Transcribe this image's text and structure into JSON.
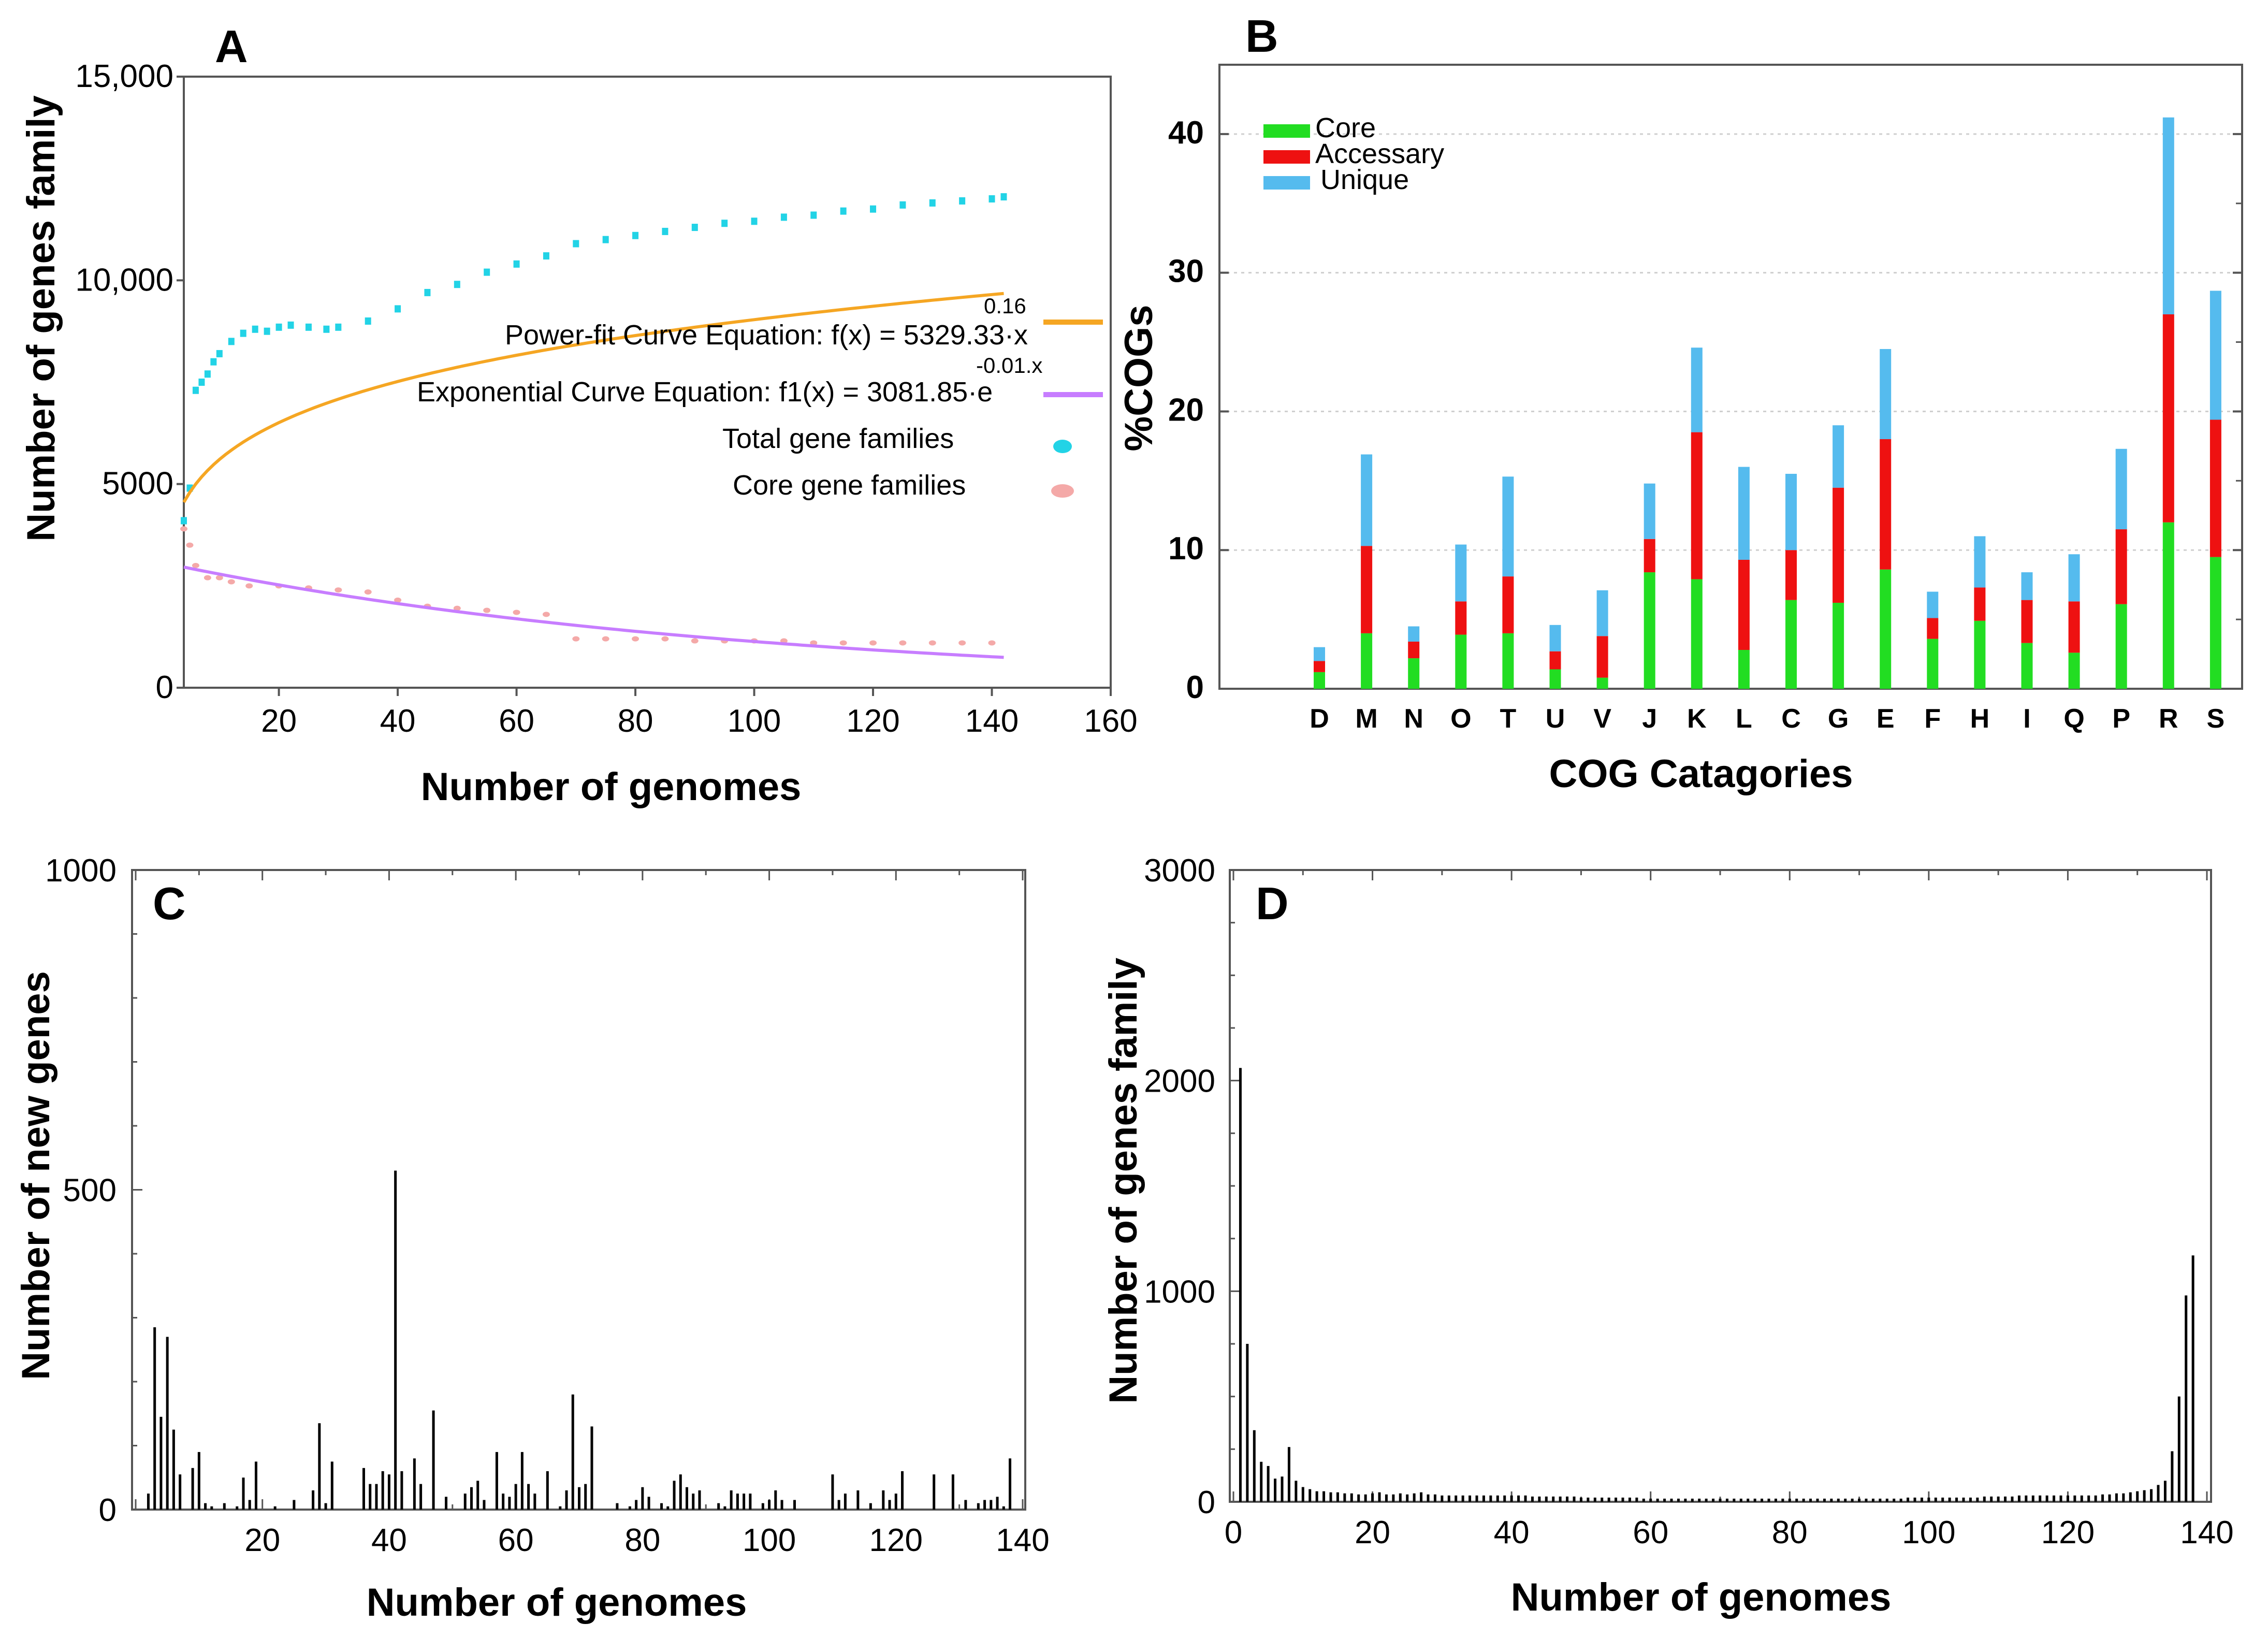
{
  "chart_data": [
    {
      "panel": "A",
      "type": "scatter",
      "xlabel": "Number of genomes",
      "ylabel": "Number of genes family",
      "xlim": [
        4,
        160
      ],
      "ylim": [
        0,
        15000
      ],
      "x_ticks": [
        "20",
        "40",
        "60",
        "80",
        "100",
        "120",
        "140",
        "160"
      ],
      "y_ticks": [
        "0",
        "5000",
        "10,000",
        "15,000"
      ],
      "colors": {
        "power": "#f5a623",
        "exp": "#c77dff",
        "total": "#22d3e6",
        "core": "#f4a9a8"
      },
      "legend": {
        "power_label": "Power-fit Curve Equation: f(x) = 5329.33·x",
        "power_exp": "0.16",
        "exp_label": "Exponential Curve Equation: f1(x) = 3081.85·e",
        "exp_exp": "-0.01.x",
        "total_label": "Total gene families",
        "core_label": "Core gene families"
      },
      "power_fit": {
        "a": 5329.33,
        "b": 0.16
      },
      "exp_fit": {
        "a": 3081.85,
        "b": -0.01
      },
      "total_points": {
        "x": [
          4,
          5,
          6,
          7,
          8,
          9,
          10,
          12,
          14,
          16,
          18,
          20,
          22,
          25,
          28,
          30,
          35,
          40,
          45,
          50,
          55,
          60,
          65,
          70,
          75,
          80,
          85,
          90,
          95,
          100,
          105,
          110,
          115,
          120,
          125,
          130,
          135,
          140,
          142
        ],
        "y": [
          4100,
          4900,
          7300,
          7500,
          7700,
          8000,
          8200,
          8500,
          8700,
          8800,
          8750,
          8850,
          8900,
          8850,
          8800,
          8850,
          9000,
          9300,
          9700,
          9900,
          10200,
          10400,
          10600,
          10900,
          11000,
          11100,
          11200,
          11300,
          11400,
          11450,
          11550,
          11600,
          11700,
          11750,
          11850,
          11900,
          11950,
          12000,
          12050
        ]
      },
      "core_points": {
        "x": [
          4,
          5,
          6,
          8,
          10,
          12,
          15,
          20,
          25,
          30,
          35,
          40,
          45,
          50,
          55,
          60,
          65,
          70,
          75,
          80,
          85,
          90,
          95,
          100,
          105,
          110,
          115,
          120,
          125,
          130,
          135,
          140
        ],
        "y": [
          3900,
          3500,
          3000,
          2700,
          2700,
          2600,
          2500,
          2500,
          2450,
          2400,
          2350,
          2150,
          2000,
          1950,
          1900,
          1850,
          1800,
          1200,
          1200,
          1200,
          1200,
          1150,
          1150,
          1150,
          1150,
          1100,
          1100,
          1100,
          1100,
          1100,
          1100,
          1100
        ]
      }
    },
    {
      "panel": "B",
      "type": "bar",
      "stacked": true,
      "xlabel": "COG Catagories",
      "ylabel": "%COGs",
      "ylim": [
        0,
        45
      ],
      "y_ticks": [
        "0",
        "10",
        "20",
        "30",
        "40"
      ],
      "categories": [
        "D",
        "M",
        "N",
        "O",
        "T",
        "U",
        "V",
        "J",
        "K",
        "L",
        "C",
        "G",
        "E",
        "F",
        "H",
        "I",
        "Q",
        "P",
        "R",
        "S"
      ],
      "series": [
        {
          "name": "Core",
          "color": "#22dd22",
          "values": [
            1.2,
            4.0,
            2.2,
            3.9,
            4.0,
            1.4,
            0.8,
            8.4,
            7.9,
            2.8,
            6.4,
            6.2,
            8.6,
            3.6,
            4.9,
            3.3,
            2.6,
            6.1,
            12.0,
            9.5
          ]
        },
        {
          "name": "Accessary",
          "color": "#ee1111",
          "values": [
            0.8,
            6.3,
            1.2,
            2.4,
            4.1,
            1.3,
            3.0,
            2.4,
            10.6,
            6.5,
            3.6,
            8.3,
            9.4,
            1.5,
            2.4,
            3.1,
            3.7,
            5.4,
            15.0,
            9.9
          ]
        },
        {
          "name": "Unique",
          "color": "#55bbee",
          "values": [
            1.0,
            6.6,
            1.1,
            4.1,
            7.2,
            1.9,
            3.3,
            4.0,
            6.1,
            6.7,
            5.5,
            4.5,
            6.5,
            1.9,
            3.7,
            2.0,
            3.4,
            5.8,
            14.2,
            9.3
          ]
        }
      ],
      "legend_position": "top-left"
    },
    {
      "panel": "C",
      "type": "bar",
      "xlabel": "Number of genomes",
      "ylabel": "Number of new genes",
      "xlim": [
        0,
        140
      ],
      "ylim": [
        0,
        1000
      ],
      "x_ticks": [
        "20",
        "40",
        "60",
        "80",
        "100",
        "120",
        "140"
      ],
      "y_ticks": [
        "0",
        "500",
        "1000"
      ],
      "x": [
        2,
        3,
        4,
        5,
        6,
        7,
        9,
        10,
        11,
        12,
        14,
        16,
        17,
        18,
        19,
        22,
        25,
        28,
        29,
        30,
        31,
        36,
        37,
        38,
        39,
        40,
        41,
        42,
        44,
        45,
        47,
        49,
        52,
        53,
        54,
        55,
        57,
        58,
        59,
        60,
        61,
        62,
        63,
        65,
        67,
        68,
        69,
        70,
        71,
        72,
        76,
        78,
        79,
        80,
        81,
        83,
        84,
        85,
        86,
        87,
        88,
        89,
        92,
        93,
        94,
        95,
        96,
        97,
        99,
        100,
        101,
        102,
        104,
        110,
        111,
        112,
        114,
        116,
        118,
        119,
        120,
        121,
        126,
        129,
        131,
        133,
        134,
        135,
        136,
        137,
        138
      ],
      "values": [
        25,
        285,
        145,
        270,
        125,
        55,
        65,
        90,
        10,
        5,
        10,
        5,
        50,
        15,
        75,
        5,
        15,
        30,
        135,
        10,
        75,
        65,
        40,
        40,
        60,
        55,
        530,
        60,
        80,
        40,
        155,
        20,
        25,
        35,
        45,
        15,
        90,
        25,
        20,
        40,
        90,
        40,
        25,
        60,
        5,
        30,
        180,
        35,
        40,
        130,
        10,
        5,
        15,
        35,
        20,
        10,
        5,
        45,
        55,
        35,
        25,
        30,
        10,
        5,
        30,
        25,
        25,
        25,
        10,
        15,
        30,
        15,
        15,
        55,
        15,
        25,
        30,
        10,
        30,
        15,
        25,
        60,
        55,
        55,
        15,
        10,
        15,
        15,
        20,
        5,
        80
      ]
    },
    {
      "panel": "D",
      "type": "bar",
      "xlabel": "Number of genomes",
      "ylabel": "Number of genes family",
      "xlim": [
        0,
        140
      ],
      "ylim": [
        0,
        3000
      ],
      "x_ticks": [
        "0",
        "20",
        "40",
        "60",
        "80",
        "100",
        "120",
        "140"
      ],
      "y_ticks": [
        "0",
        "1000",
        "2000",
        "3000"
      ],
      "x": [
        1,
        2,
        3,
        4,
        5,
        6,
        7,
        8,
        9,
        10,
        11,
        12,
        13,
        14,
        15,
        16,
        17,
        18,
        19,
        20,
        21,
        22,
        23,
        24,
        25,
        26,
        27,
        28,
        29,
        30,
        31,
        32,
        33,
        34,
        35,
        36,
        37,
        38,
        39,
        40,
        41,
        42,
        43,
        44,
        45,
        46,
        47,
        48,
        49,
        50,
        51,
        52,
        53,
        54,
        55,
        56,
        57,
        58,
        59,
        60,
        61,
        62,
        63,
        64,
        65,
        66,
        67,
        68,
        69,
        70,
        71,
        72,
        73,
        74,
        75,
        76,
        77,
        78,
        79,
        80,
        81,
        82,
        83,
        84,
        85,
        86,
        87,
        88,
        89,
        90,
        91,
        92,
        93,
        94,
        95,
        96,
        97,
        98,
        99,
        100,
        101,
        102,
        103,
        104,
        105,
        106,
        107,
        108,
        109,
        110,
        111,
        112,
        113,
        114,
        115,
        116,
        117,
        118,
        119,
        120,
        121,
        122,
        123,
        124,
        125,
        126,
        127,
        128,
        129,
        130,
        131,
        132,
        133,
        134,
        135,
        136,
        137,
        138
      ],
      "values": [
        2060,
        750,
        340,
        190,
        170,
        110,
        120,
        260,
        100,
        70,
        60,
        50,
        50,
        45,
        45,
        40,
        40,
        35,
        35,
        40,
        45,
        35,
        35,
        40,
        35,
        40,
        45,
        35,
        35,
        30,
        30,
        30,
        30,
        30,
        30,
        30,
        30,
        30,
        30,
        30,
        30,
        30,
        25,
        25,
        25,
        25,
        25,
        25,
        25,
        20,
        20,
        20,
        20,
        20,
        20,
        20,
        20,
        20,
        15,
        15,
        15,
        15,
        15,
        15,
        15,
        15,
        15,
        15,
        15,
        15,
        15,
        15,
        15,
        15,
        15,
        15,
        15,
        15,
        15,
        15,
        15,
        15,
        15,
        15,
        15,
        15,
        15,
        15,
        15,
        15,
        15,
        15,
        15,
        15,
        15,
        15,
        20,
        20,
        20,
        20,
        20,
        20,
        20,
        20,
        20,
        20,
        20,
        25,
        25,
        25,
        25,
        25,
        30,
        30,
        30,
        30,
        30,
        30,
        30,
        30,
        30,
        30,
        30,
        30,
        35,
        35,
        40,
        40,
        45,
        50,
        55,
        60,
        80,
        100,
        240,
        500,
        980,
        1170
      ]
    }
  ]
}
